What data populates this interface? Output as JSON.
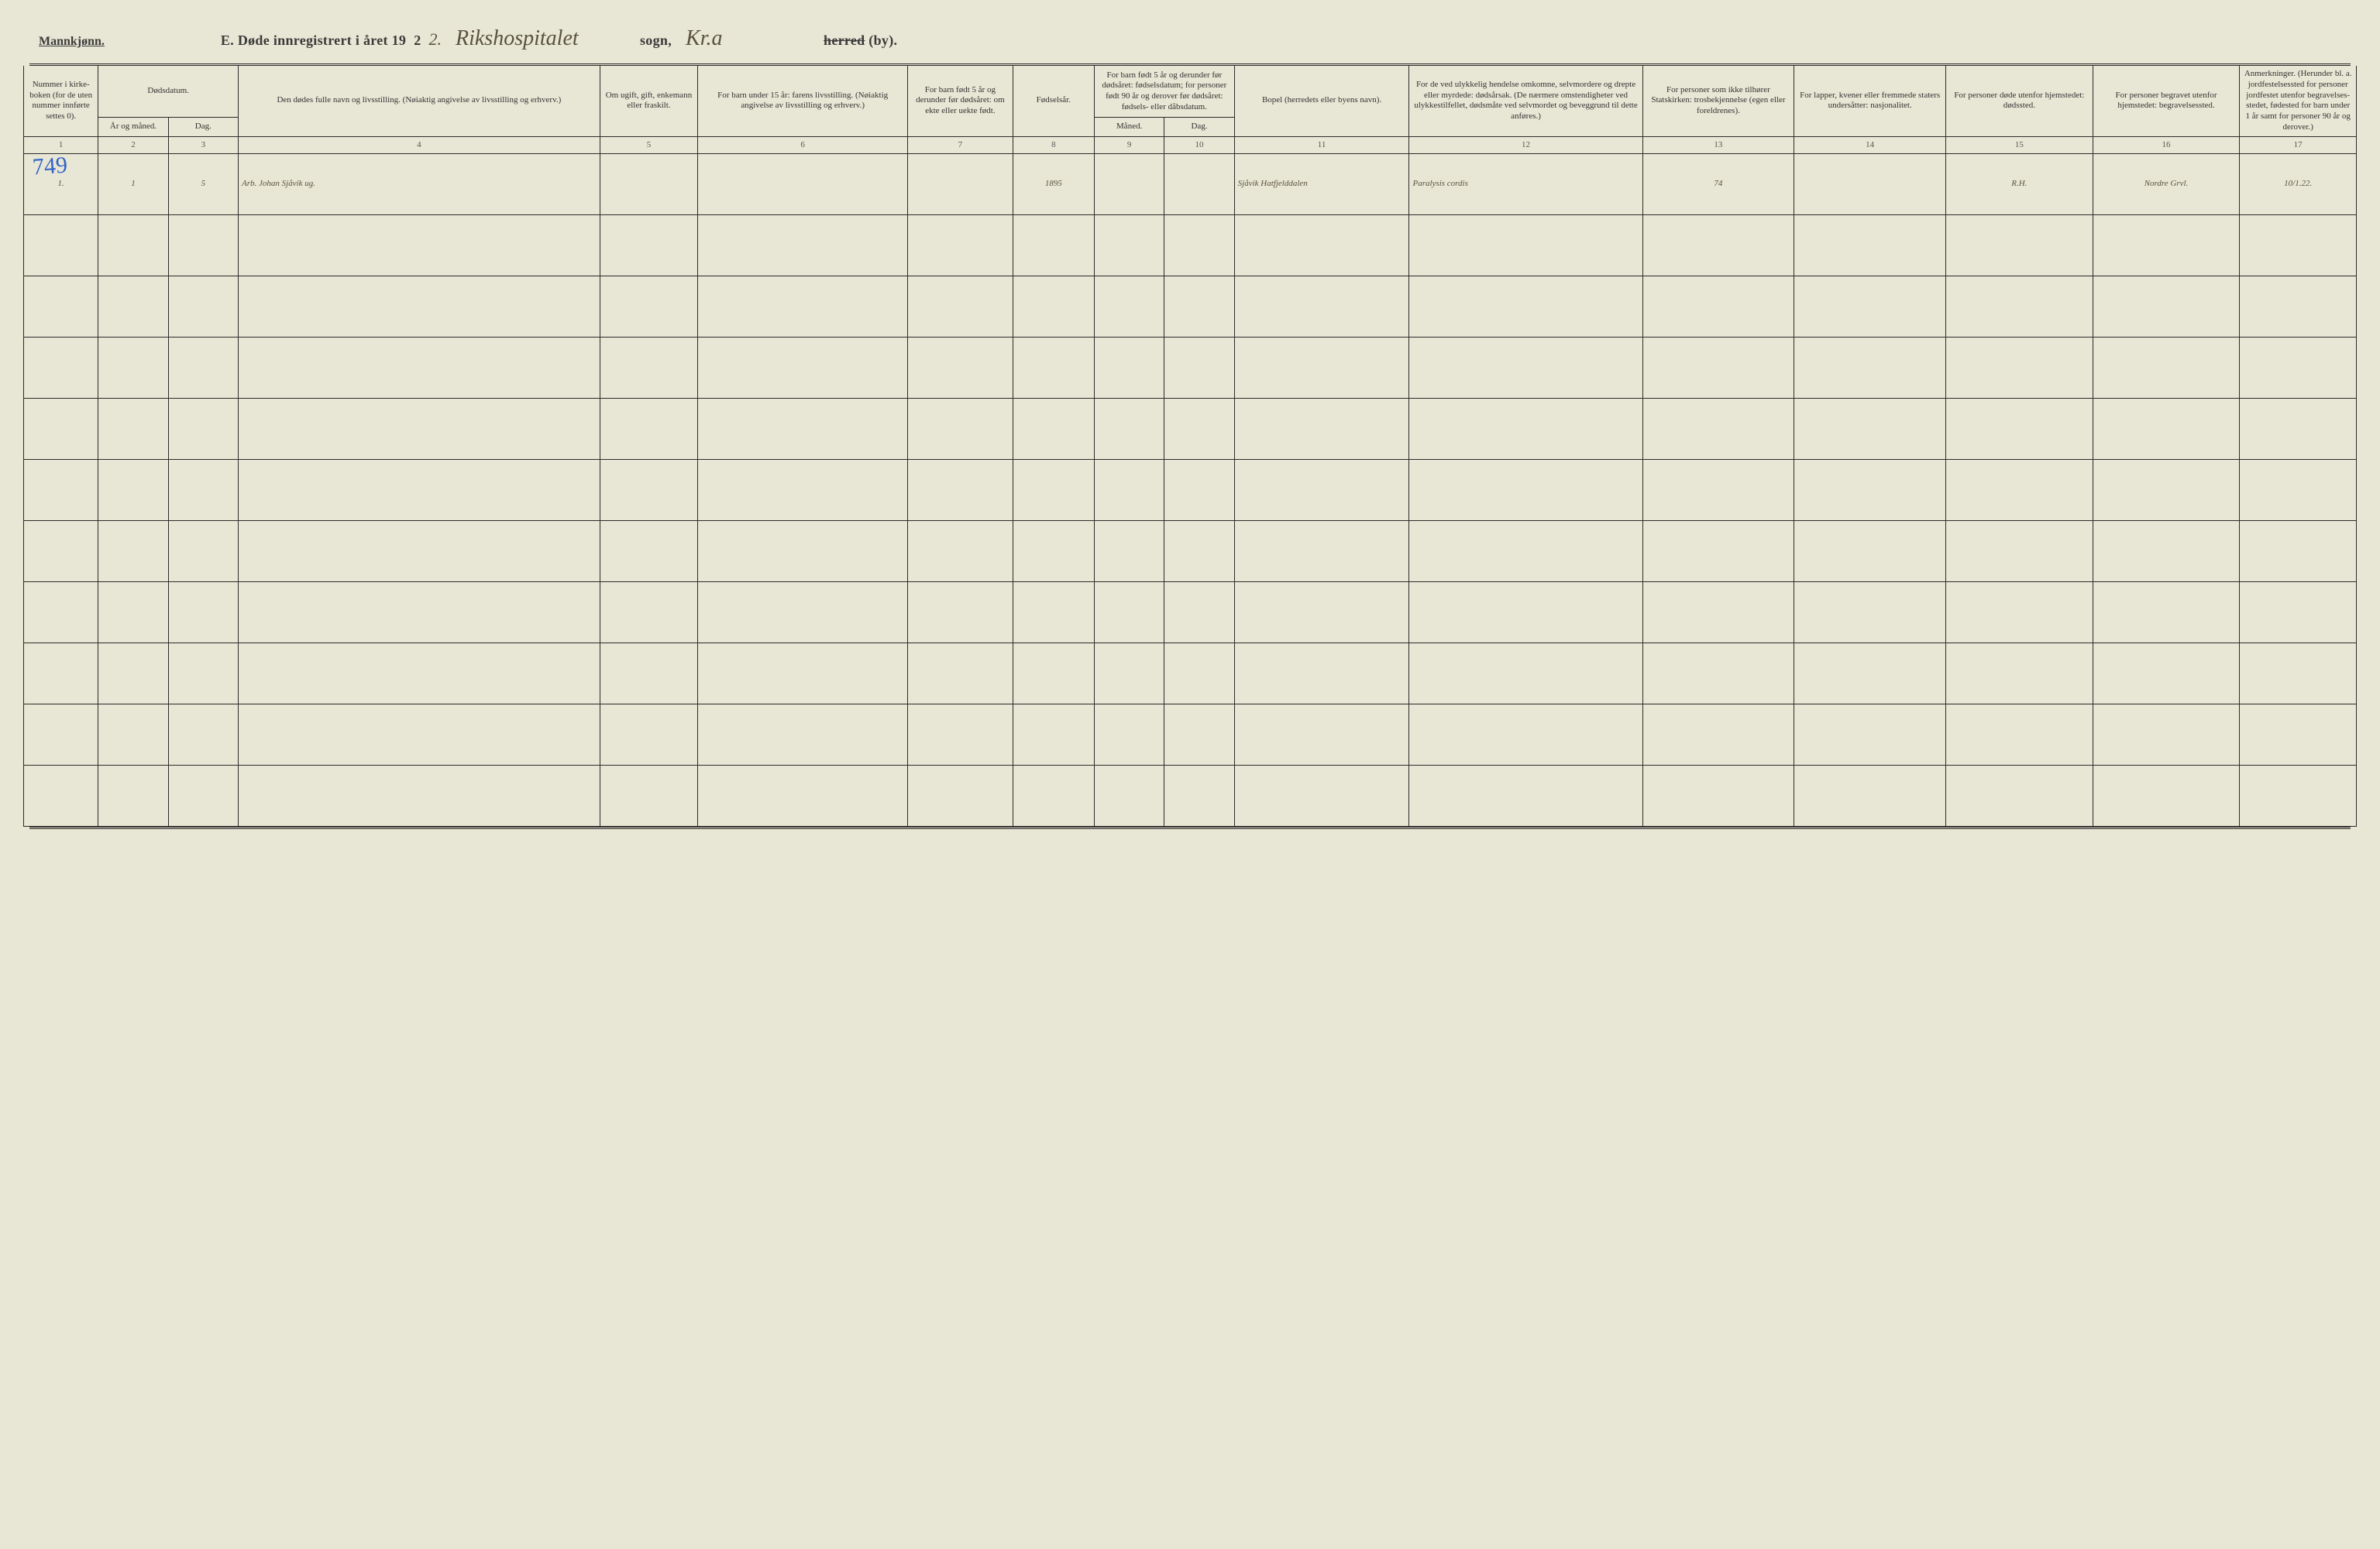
{
  "header": {
    "gender": "Mannkjønn.",
    "title_prefix": "E. Døde innregistrert i året 19",
    "year_printed_digit": "2",
    "year_handwritten_digit": "2.",
    "parish_handwritten": "Rikshospitalet",
    "sogn_label": "sogn,",
    "district_handwritten": "Kr.a",
    "herred_label": "herred (by).",
    "herred_strike": true
  },
  "pencil_number": "749",
  "columns": {
    "c1": "Nummer i kirke­boken (for de uten nummer innførte settes 0).",
    "c2_group": "Dødsdatum.",
    "c2a": "År og måned.",
    "c2b": "Dag.",
    "c4": "Den dødes fulle navn og livsstilling. (Nøiaktig angivelse av livsstilling og erhverv.)",
    "c5": "Om ugift, gift, enke­mann eller fraskilt.",
    "c6": "For barn under 15 år: farens livsstilling. (Nøiaktig angivelse av livsstilling og erhverv.)",
    "c7": "For barn født 5 år og derunder før dødsåret: om ekte eller uekte født.",
    "c8": "Fødsels­år.",
    "c9_group": "For barn født 5 år og derunder før dødsåret: fødselsdatum; for personer født 90 år og derover før dødsåret: fødsels- eller dåbsdatum.",
    "c9a": "Måned.",
    "c9b": "Dag.",
    "c11": "Bopel (herredets eller byens navn).",
    "c12": "For de ved ulykkelig hendelse omkomne, selvmordere og drepte eller myrdede: dødsårsak. (De nærmere omsten­digheter ved ulykkes­tilfellet, dødsmåte ved selvmordet og beveg­grund til dette anføres.)",
    "c13": "For personer som ikke tilhører Statskirken: trosbekjennelse (egen eller foreldrenes).",
    "c14": "For lapper, kvener eller fremmede staters undersåtter: nasjonalitet.",
    "c15": "For personer døde utenfor hjemstedet: dødssted.",
    "c16": "For personer begravet utenfor hjemstedet: begravelsessted.",
    "c17": "Anmerkninger. (Herunder bl. a. jordfestelsessted for personer jordfestet utenfor begravelses­stedet, fødested for barn under 1 år samt for personer 90 år og derover.)"
  },
  "colnums": [
    "1",
    "2",
    "3",
    "4",
    "5",
    "6",
    "7",
    "8",
    "9",
    "10",
    "11",
    "12",
    "13",
    "14",
    "15",
    "16",
    "17"
  ],
  "rows": [
    {
      "num": "1.",
      "year_month": "1",
      "day": "5",
      "name": "Arb. Johan Sjåvik ug.",
      "marital": "",
      "father_occ": "",
      "legitimate": "",
      "birth_year": "1895",
      "birth_month": "",
      "birth_day": "",
      "residence": "Sjåvik Hatfjelddalen",
      "cause": "Paralysis cordis",
      "faith": "74",
      "nationality": "",
      "death_place": "R.H.",
      "burial_place": "Nordre Grvl.",
      "remarks": "10/1.22."
    }
  ],
  "empty_row_count": 10,
  "style": {
    "paper_color": "#e8e6d4",
    "ink_color": "#2b2b2b",
    "handwriting_color": "#5a5240",
    "pencil_color": "#3464c8",
    "col_widths_pct": [
      3.2,
      3.0,
      3.0,
      15.5,
      4.2,
      9.0,
      4.5,
      3.5,
      3.0,
      3.0,
      7.5,
      10.0,
      6.5,
      6.5,
      6.3,
      6.3,
      5.0
    ]
  }
}
